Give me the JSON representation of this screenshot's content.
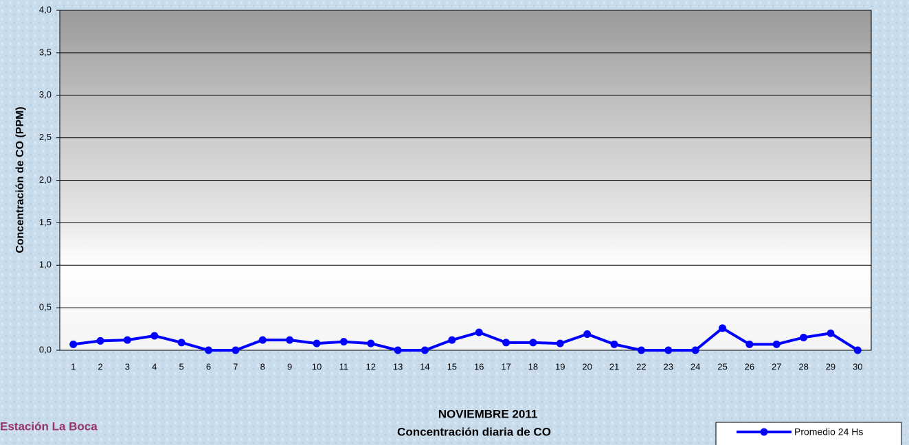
{
  "chart_data": {
    "type": "line",
    "title": "NOVIEMBRE 2011",
    "subtitle": "Concentración diaria de CO",
    "annotation": "Estación La Boca",
    "y_label": "Concentración de CO (PPM)",
    "categories": [
      "1",
      "2",
      "3",
      "4",
      "5",
      "6",
      "7",
      "8",
      "9",
      "10",
      "11",
      "12",
      "13",
      "14",
      "15",
      "16",
      "17",
      "18",
      "19",
      "20",
      "21",
      "22",
      "23",
      "24",
      "25",
      "26",
      "27",
      "28",
      "29",
      "30"
    ],
    "series": [
      {
        "name": "Promedio 24 Hs",
        "color": "#0000ff",
        "values": [
          0.07,
          0.11,
          0.12,
          0.17,
          0.09,
          0,
          0,
          0.12,
          0.12,
          0.08,
          0.1,
          0.08,
          0,
          0,
          0.12,
          0.21,
          0.09,
          0.09,
          0.08,
          0.19,
          0.07,
          0,
          0,
          0,
          0.26,
          0.07,
          0.07,
          0.15,
          0.2,
          0
        ]
      }
    ],
    "ylim": [
      0,
      4
    ],
    "yticks": [
      {
        "value": 0,
        "label": "0,0"
      },
      {
        "value": 0.5,
        "label": "0,5"
      },
      {
        "value": 1,
        "label": "1,0"
      },
      {
        "value": 1.5,
        "label": "1,5"
      },
      {
        "value": 2,
        "label": "2,0"
      },
      {
        "value": 2.5,
        "label": "2,5"
      },
      {
        "value": 3,
        "label": "3,0"
      },
      {
        "value": 3.5,
        "label": "3,5"
      },
      {
        "value": 4,
        "label": "4,0"
      }
    ],
    "grid": true
  }
}
